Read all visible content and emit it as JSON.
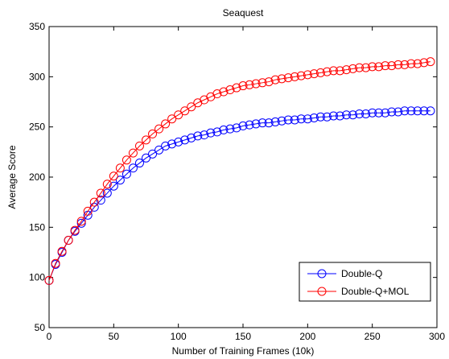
{
  "chart_data": {
    "type": "line",
    "title": "Seaquest",
    "xlabel": "Number of Training Frames (10k)",
    "ylabel": "Average Score",
    "xlim": [
      0,
      300
    ],
    "ylim": [
      50,
      350
    ],
    "xticks": [
      0,
      50,
      100,
      150,
      200,
      250,
      300
    ],
    "yticks": [
      50,
      100,
      150,
      200,
      250,
      300,
      350
    ],
    "grid": false,
    "legend_position": "bottom-right",
    "x": [
      0,
      5,
      10,
      15,
      20,
      25,
      30,
      35,
      40,
      45,
      50,
      55,
      60,
      65,
      70,
      75,
      80,
      85,
      90,
      95,
      100,
      105,
      110,
      115,
      120,
      125,
      130,
      135,
      140,
      145,
      150,
      155,
      160,
      165,
      170,
      175,
      180,
      185,
      190,
      195,
      200,
      205,
      210,
      215,
      220,
      225,
      230,
      235,
      240,
      245,
      250,
      255,
      260,
      265,
      270,
      275,
      280,
      285,
      290,
      295
    ],
    "series": [
      {
        "name": "Double-Q",
        "color": "#0000ff",
        "marker": "circle",
        "values": [
          97,
          113,
          125,
          137,
          146,
          154,
          162,
          170,
          177,
          184,
          191,
          197,
          203,
          209,
          214,
          219,
          223,
          227,
          231,
          233,
          235,
          237,
          239,
          241,
          242,
          244,
          245,
          247,
          248,
          249,
          251,
          252,
          253,
          254,
          254,
          255,
          256,
          257,
          257,
          258,
          258,
          259,
          260,
          260,
          261,
          261,
          262,
          262,
          263,
          263,
          264,
          264,
          264,
          265,
          265,
          266,
          266,
          266,
          266,
          266
        ]
      },
      {
        "name": "Double-Q+MOL",
        "color": "#ff0000",
        "marker": "circle",
        "values": [
          97,
          114,
          126,
          137,
          147,
          156,
          166,
          175,
          184,
          193,
          201,
          209,
          217,
          224,
          231,
          237,
          243,
          248,
          253,
          258,
          262,
          266,
          270,
          274,
          277,
          280,
          283,
          285,
          287,
          289,
          291,
          292,
          293,
          294,
          295,
          297,
          298,
          299,
          300,
          301,
          302,
          303,
          304,
          305,
          306,
          306,
          307,
          308,
          309,
          309,
          310,
          310,
          311,
          311,
          312,
          312,
          313,
          313,
          314,
          315
        ]
      }
    ]
  }
}
